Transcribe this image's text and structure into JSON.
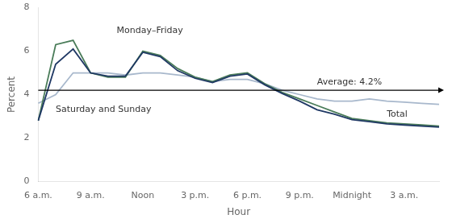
{
  "chart_data": {
    "type": "line",
    "xlabel": "Hour",
    "ylabel": "Percent",
    "categories": [
      "6 a.m.",
      null,
      null,
      "9 a.m.",
      null,
      null,
      "Noon",
      null,
      null,
      "3 p.m.",
      null,
      null,
      "6 p.m.",
      null,
      null,
      "9 p.m.",
      null,
      null,
      "Midnight",
      null,
      null,
      "3 a.m.",
      null,
      null
    ],
    "series": [
      {
        "name": "Saturday and Sunday",
        "color": "#a8b8cc",
        "values": [
          3.6,
          4.0,
          5.0,
          5.0,
          5.0,
          4.9,
          5.0,
          5.0,
          4.9,
          4.8,
          4.6,
          4.7,
          4.7,
          4.5,
          4.2,
          4.0,
          3.8,
          3.7,
          3.7,
          3.8,
          3.7,
          3.65,
          3.6,
          3.55
        ]
      },
      {
        "name": "Monday–Friday",
        "color": "#4a7c59",
        "values": [
          2.8,
          6.3,
          6.5,
          5.0,
          4.8,
          4.8,
          6.0,
          5.8,
          5.2,
          4.8,
          4.6,
          4.9,
          5.0,
          4.5,
          4.1,
          3.8,
          3.5,
          3.2,
          2.9,
          2.8,
          2.7,
          2.65,
          2.6,
          2.55
        ]
      },
      {
        "name": "Total",
        "color": "#1f3864",
        "values": [
          2.8,
          5.4,
          6.1,
          5.0,
          4.85,
          4.85,
          5.95,
          5.75,
          5.1,
          4.75,
          4.55,
          4.85,
          4.95,
          4.45,
          4.05,
          3.7,
          3.3,
          3.1,
          2.85,
          2.75,
          2.65,
          2.6,
          2.55,
          2.5
        ]
      }
    ],
    "reference_line": {
      "value": 4.2,
      "label": "Average: 4.2%",
      "color": "#000000"
    },
    "ylim": [
      0,
      8
    ],
    "yticks": [
      0,
      2,
      4,
      6,
      8
    ],
    "grid": false,
    "legend": false
  }
}
